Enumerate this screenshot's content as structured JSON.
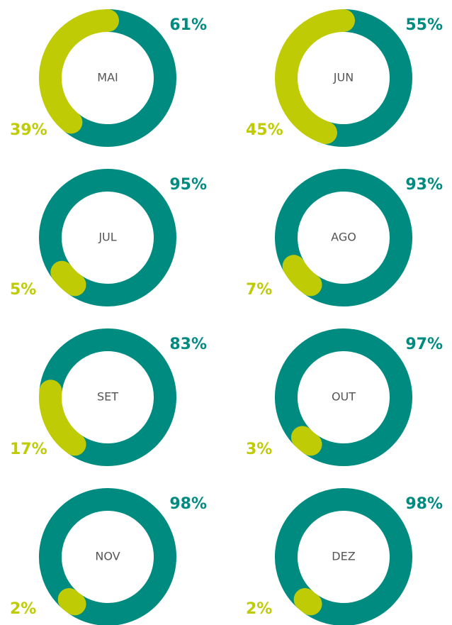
{
  "chart_data": [
    {
      "type": "pie",
      "title": "MAI",
      "values": [
        61,
        39
      ],
      "value_labels": [
        "61%",
        "39%"
      ],
      "colors": [
        "#008b81",
        "#bfcc05"
      ]
    },
    {
      "type": "pie",
      "title": "JUN",
      "values": [
        55,
        45
      ],
      "value_labels": [
        "55%",
        "45%"
      ],
      "colors": [
        "#008b81",
        "#bfcc05"
      ]
    },
    {
      "type": "pie",
      "title": "JUL",
      "values": [
        95,
        5
      ],
      "value_labels": [
        "95%",
        "5%"
      ],
      "colors": [
        "#008b81",
        "#bfcc05"
      ]
    },
    {
      "type": "pie",
      "title": "AGO",
      "values": [
        93,
        7
      ],
      "value_labels": [
        "93%",
        "7%"
      ],
      "colors": [
        "#008b81",
        "#bfcc05"
      ]
    },
    {
      "type": "pie",
      "title": "SET",
      "values": [
        83,
        17
      ],
      "value_labels": [
        "83%",
        "17%"
      ],
      "colors": [
        "#008b81",
        "#bfcc05"
      ]
    },
    {
      "type": "pie",
      "title": "OUT",
      "values": [
        97,
        3
      ],
      "value_labels": [
        "97%",
        "3%"
      ],
      "colors": [
        "#008b81",
        "#bfcc05"
      ]
    },
    {
      "type": "pie",
      "title": "NOV",
      "values": [
        98,
        2
      ],
      "value_labels": [
        "98%",
        "2%"
      ],
      "colors": [
        "#008b81",
        "#bfcc05"
      ]
    },
    {
      "type": "pie",
      "title": "DEZ",
      "values": [
        98,
        2
      ],
      "value_labels": [
        "98%",
        "2%"
      ],
      "colors": [
        "#008b81",
        "#bfcc05"
      ]
    }
  ]
}
